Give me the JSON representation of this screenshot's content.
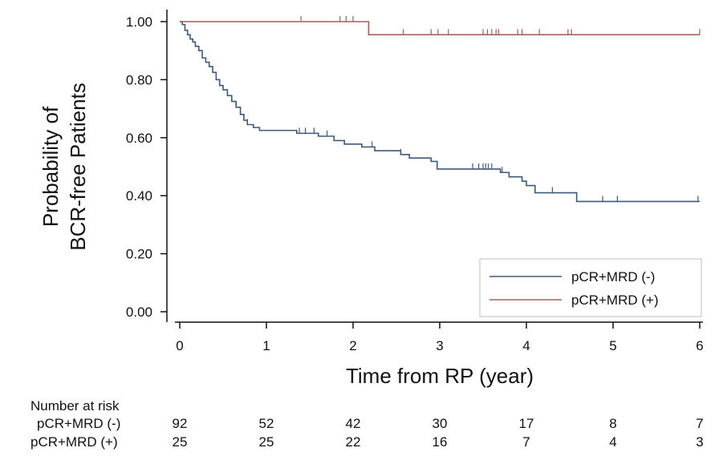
{
  "chart_data": {
    "type": "line",
    "subtype": "kaplan-meier",
    "title": "",
    "xlabel": "Time from RP (year)",
    "ylabel_lines": [
      "Probability of",
      "BCR-free Patients"
    ],
    "xlim": [
      0,
      6
    ],
    "ylim": [
      0,
      1
    ],
    "xticks": [
      0,
      1,
      2,
      3,
      4,
      5,
      6
    ],
    "yticks": [
      0,
      0.2,
      0.4,
      0.6,
      0.8,
      1.0
    ],
    "ytick_labels": [
      "0.00",
      "0.20",
      "0.40",
      "0.60",
      "0.80",
      "1.00"
    ],
    "grid": false,
    "legend_position": "bottom-right",
    "series": [
      {
        "name": "pCR+MRD (-)",
        "color": "#3f5a78",
        "steps": [
          [
            0,
            1.0
          ],
          [
            0.03,
            0.99
          ],
          [
            0.06,
            0.97
          ],
          [
            0.09,
            0.955
          ],
          [
            0.12,
            0.94
          ],
          [
            0.15,
            0.93
          ],
          [
            0.18,
            0.915
          ],
          [
            0.22,
            0.9
          ],
          [
            0.26,
            0.875
          ],
          [
            0.3,
            0.86
          ],
          [
            0.34,
            0.845
          ],
          [
            0.38,
            0.825
          ],
          [
            0.42,
            0.8
          ],
          [
            0.46,
            0.78
          ],
          [
            0.5,
            0.765
          ],
          [
            0.55,
            0.745
          ],
          [
            0.6,
            0.725
          ],
          [
            0.65,
            0.705
          ],
          [
            0.7,
            0.68
          ],
          [
            0.74,
            0.66
          ],
          [
            0.78,
            0.645
          ],
          [
            0.85,
            0.635
          ],
          [
            0.92,
            0.625
          ],
          [
            1.35,
            0.615
          ],
          [
            1.6,
            0.605
          ],
          [
            1.78,
            0.59
          ],
          [
            1.9,
            0.578
          ],
          [
            2.1,
            0.568
          ],
          [
            2.25,
            0.555
          ],
          [
            2.55,
            0.542
          ],
          [
            2.65,
            0.53
          ],
          [
            2.9,
            0.518
          ],
          [
            2.97,
            0.492
          ],
          [
            3.7,
            0.48
          ],
          [
            3.8,
            0.465
          ],
          [
            3.95,
            0.45
          ],
          [
            4.0,
            0.435
          ],
          [
            4.1,
            0.41
          ],
          [
            4.58,
            0.38
          ],
          [
            6.0,
            0.38
          ]
        ],
        "censor_times": [
          0.65,
          0.78,
          1.38,
          1.45,
          1.55,
          1.7,
          2.22,
          2.55,
          3.38,
          3.45,
          3.5,
          3.53,
          3.56,
          3.6,
          3.72,
          4.3,
          4.88,
          5.05,
          5.98
        ]
      },
      {
        "name": "pCR+MRD (+)",
        "color": "#a0605a",
        "steps": [
          [
            0,
            1.0
          ],
          [
            2.18,
            0.955
          ],
          [
            6.0,
            0.955
          ]
        ],
        "censor_times": [
          1.4,
          1.85,
          1.92,
          2.0,
          2.58,
          2.9,
          2.98,
          3.1,
          3.5,
          3.55,
          3.6,
          3.65,
          3.68,
          3.9,
          3.95,
          4.15,
          4.48,
          4.52,
          6.0
        ]
      }
    ],
    "risk_table": {
      "header": "Number at risk",
      "times": [
        0,
        1,
        2,
        3,
        4,
        5,
        6
      ],
      "rows": [
        {
          "label": "pCR+MRD (-)",
          "values": [
            "92",
            "52",
            "42",
            "30",
            "17",
            "8",
            "7"
          ]
        },
        {
          "label": "pCR+MRD (+)",
          "values": [
            "25",
            "25",
            "22",
            "16",
            "7",
            "4",
            "3"
          ]
        }
      ]
    }
  }
}
